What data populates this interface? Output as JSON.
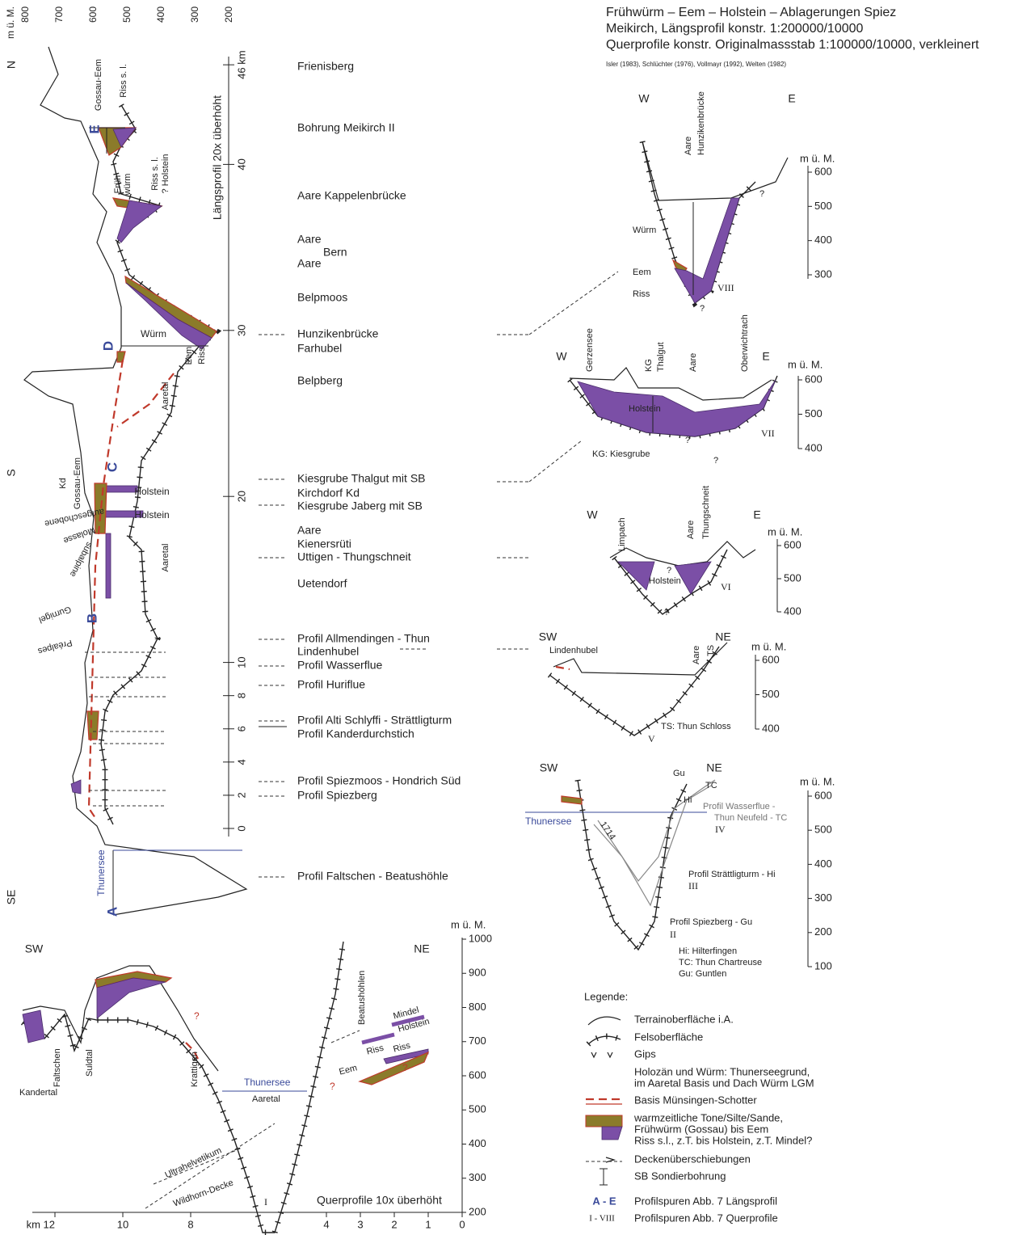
{
  "header": {
    "title_lines": [
      "Frühwürm – Eem – Holstein – Ablagerungen Spiez",
      "Meikirch, Längsprofil konstr. 1:200000/10000",
      "Querprofile konstr. Originalmassstab 1:100000/10000, verkleinert"
    ],
    "sources": "Isler (1983), Schlüchter (1976), Vollmayr (1992), Welten (1982)"
  },
  "long_profile": {
    "elev_unit": "m ü. M.",
    "elev_ticks": [
      800,
      700,
      600,
      500,
      400,
      300,
      200
    ],
    "km_ticks": [
      {
        "value": 46,
        "label": "46 km"
      },
      40,
      30,
      20,
      10,
      8,
      6,
      4,
      2,
      0
    ],
    "axis_title": "Längsprofil 20x überhöht",
    "directions": [
      "N",
      "S",
      "SE"
    ],
    "labels": [
      "Gossau-Eem",
      "Riss s. l.",
      "E",
      "Früh",
      "würm",
      "Riss s. l.",
      "? Holstein",
      "Würm",
      "D",
      "Eem",
      "Riss",
      "Aaretal",
      "Kd",
      "Gossau-Eem",
      "C",
      "Holstein",
      "Holstein",
      "aufgeschobene",
      "Molasse",
      "subalpine",
      "Gurnigel",
      "B",
      "Préalpes",
      "Aaretal",
      "Thunersee",
      "A"
    ],
    "sites": [
      "Frienisberg",
      "Bohrung Meikirch II",
      "Aare Kappelenbrücke",
      "Aare",
      "Bern",
      "Aare",
      "Belpmoos",
      "Hunzikenbrücke",
      "Farhubel",
      "Belpberg",
      "Kiesgrube Thalgut mit SB",
      "Kirchdorf Kd",
      "Kiesgrube Jaberg mit SB",
      "Aare",
      "Kienersrüti",
      "Uttigen - Thungschneit",
      "Uetendorf",
      "Profil Allmendingen - Thun",
      "Lindenhubel",
      "Profil Wasserflue",
      "Profil Huriflue",
      "Profil Alti Schlyffi - Strättligturm",
      "Profil Kanderdurchstich",
      "Profil Spiezmoos - Hondrich Süd",
      "Profil Spiezberg",
      "Profil Faltschen - Beatushöhle"
    ]
  },
  "sections": {
    "VIII": {
      "directions": [
        "W",
        "E"
      ],
      "unit": "m ü. M.",
      "ticks": [
        600,
        500,
        400,
        300
      ],
      "labels": [
        "Aare",
        "Hunzikenbrücke",
        "Würm",
        "Eem",
        "Riss",
        "VIII",
        "?",
        "?"
      ]
    },
    "VII": {
      "directions": [
        "W",
        "E"
      ],
      "unit": "m ü. M.",
      "ticks": [
        600,
        500,
        400
      ],
      "labels": [
        "Gerzensee",
        "KG",
        "Thalgut",
        "Aare",
        "Oberwichtrach",
        "Holstein",
        "VII",
        "KG: Kiesgrube",
        "?",
        "?"
      ]
    },
    "VI": {
      "directions": [
        "W",
        "E"
      ],
      "unit": "m ü. M.",
      "ticks": [
        600,
        500,
        400
      ],
      "labels": [
        "Limpach",
        "Aare",
        "Thungschneit",
        "Holstein",
        "VI",
        "?",
        "?"
      ]
    },
    "V": {
      "directions": [
        "SW",
        "NE"
      ],
      "unit": "m ü. M.",
      "ticks": [
        600,
        500,
        400
      ],
      "labels": [
        "Lindenhubel",
        "Aare",
        "TS",
        "TS: Thun Schloss",
        "V"
      ]
    },
    "IV": {
      "directions": [
        "SW",
        "NE"
      ],
      "unit": "m ü. M.",
      "ticks": [
        600,
        500,
        400,
        300,
        200,
        100
      ],
      "labels": [
        "Gu",
        "TC",
        "Hi",
        "Thunersee",
        "1714",
        "Profil  Wasserflue  -",
        "Thun Neufeld - TC",
        "IV",
        "Profil Strättligturm - Hi",
        "III",
        "Profil Spiezberg - Gu",
        "II",
        "Hi: Hilterfingen",
        "TC: Thun Chartreuse",
        "Gu: Guntlen"
      ]
    },
    "I": {
      "directions": [
        "SW",
        "NE"
      ],
      "unit": "m ü. M.",
      "ticks": [
        1000,
        900,
        800,
        700,
        600,
        500,
        400,
        300,
        200
      ],
      "km_ticks": [
        {
          "value": 12,
          "label": "km 12"
        },
        10,
        8,
        4,
        3,
        2,
        1,
        0
      ],
      "labels": [
        "Faltschen",
        "Suldtal",
        "Kandertal",
        "Krattigen",
        "Thunersee",
        "Aaretal",
        "Ultrahelvetikum",
        "Wildhorn-Decke",
        "I",
        "Beatushöhlen",
        "Mindel",
        "Holstein",
        "Riss",
        "Riss",
        "Eem",
        "?",
        "?",
        "?",
        "Querprofile 10x überhöht"
      ]
    }
  },
  "legend": {
    "title": "Legende:",
    "items": [
      [
        "Terrainoberfläche i.A."
      ],
      [
        "Felsoberfläche"
      ],
      [
        "Gips"
      ],
      [
        "Holozän und Würm: Thunerseegrund,",
        "im Aaretal Basis und Dach Würm LGM"
      ],
      [
        "Basis Münsingen-Schotter"
      ],
      [
        "warmzeitliche Tone/Silte/Sande,",
        "Frühwürm (Gossau) bis Eem",
        "Riss s.l., z.T. bis Holstein, z.T. Mindel?"
      ],
      [
        "Deckenüberschiebungen"
      ],
      [
        "SB Sondierbohrung"
      ],
      [
        "Profilspuren Abb. 7 Längsprofil"
      ],
      [
        "Profilspuren Abb. 7 Querprofile"
      ]
    ],
    "keys": [
      "A - E",
      "I - VIII"
    ]
  }
}
